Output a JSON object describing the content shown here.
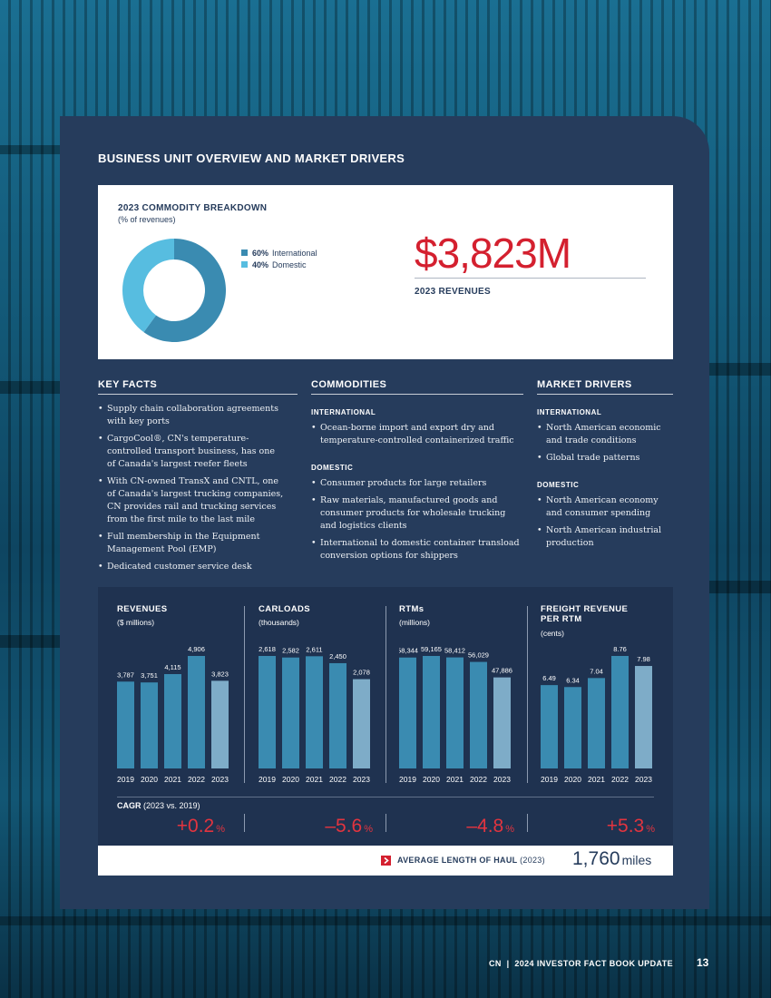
{
  "section_title": "BUSINESS UNIT OVERVIEW AND MARKET DRIVERS",
  "breakdown": {
    "title": "2023 COMMODITY BREAKDOWN",
    "subtitle": "(% of revenues)",
    "segments": [
      {
        "pct_label": "60%",
        "name": "International",
        "value": 60,
        "color": "#3a8bb1"
      },
      {
        "pct_label": "40%",
        "name": "Domestic",
        "value": 40,
        "color": "#57bde0"
      }
    ],
    "revenue_value": "$3,823M",
    "revenue_label": "2023 REVENUES"
  },
  "key_facts": {
    "heading": "KEY FACTS",
    "items": [
      "Supply chain collaboration agreements with key ports",
      "CargoCool®, CN's temperature-controlled transport business, has one of Canada's largest reefer fleets",
      "With CN-owned TransX and CNTL, one of Canada's largest trucking companies, CN provides rail and trucking services from the first mile to the last mile",
      "Full membership in the Equipment Management Pool (EMP)",
      "Dedicated customer service desk"
    ]
  },
  "commodities": {
    "heading": "COMMODITIES",
    "international_label": "INTERNATIONAL",
    "international": [
      "Ocean-borne import and export dry and temperature-controlled containerized traffic"
    ],
    "domestic_label": "DOMESTIC",
    "domestic": [
      "Consumer products for large retailers",
      "Raw materials, manufactured goods and consumer products for wholesale trucking and logistics clients",
      "International to domestic container transload conversion options for shippers"
    ]
  },
  "market_drivers": {
    "heading": "MARKET DRIVERS",
    "international_label": "INTERNATIONAL",
    "international": [
      "North American economic and trade conditions",
      "Global trade patterns"
    ],
    "domestic_label": "DOMESTIC",
    "domestic": [
      "North American economy and consumer spending",
      "North American industrial production"
    ]
  },
  "chart_data": [
    {
      "type": "bar",
      "title": "REVENUES",
      "ylabel": "($ millions)",
      "categories": [
        "2019",
        "2020",
        "2021",
        "2022",
        "2023"
      ],
      "values": [
        3787,
        3751,
        4115,
        4906,
        3823
      ],
      "labels": [
        "3,787",
        "3,751",
        "4,115",
        "4,906",
        "3,823"
      ],
      "ylim": [
        0,
        4906
      ]
    },
    {
      "type": "bar",
      "title": "CARLOADS",
      "ylabel": "(thousands)",
      "categories": [
        "2019",
        "2020",
        "2021",
        "2022",
        "2023"
      ],
      "values": [
        2618,
        2582,
        2611,
        2450,
        2078
      ],
      "labels": [
        "2,618",
        "2,582",
        "2,611",
        "2,450",
        "2,078"
      ],
      "ylim": [
        0,
        2618
      ]
    },
    {
      "type": "bar",
      "title": "RTMs",
      "ylabel": "(millions)",
      "categories": [
        "2019",
        "2020",
        "2021",
        "2022",
        "2023"
      ],
      "values": [
        58344,
        59165,
        58412,
        56029,
        47886
      ],
      "labels": [
        "58,344",
        "59,165",
        "58,412",
        "56,029",
        "47,886"
      ],
      "ylim": [
        0,
        59165
      ]
    },
    {
      "type": "bar",
      "title": "FREIGHT REVENUE PER RTM",
      "ylabel": "(cents)",
      "categories": [
        "2019",
        "2020",
        "2021",
        "2022",
        "2023"
      ],
      "values": [
        6.49,
        6.34,
        7.04,
        8.76,
        7.98
      ],
      "labels": [
        "6.49",
        "6.34",
        "7.04",
        "8.76",
        "7.98"
      ],
      "ylim": [
        0,
        8.76
      ]
    }
  ],
  "cagr": {
    "label": "CAGR",
    "period": "(2023 vs. 2019)",
    "values": [
      "+0.2",
      "–5.6",
      "–4.8",
      "+5.3"
    ],
    "unit": "%"
  },
  "haul": {
    "label": "AVERAGE LENGTH OF HAUL",
    "year": "(2023)",
    "value": "1,760",
    "unit": "miles"
  },
  "footer": {
    "text": "CN  |  2024 INVESTOR FACT BOOK UPDATE",
    "page": "13"
  },
  "colors": {
    "panel": "#263c5c",
    "accent_red": "#d4202f",
    "bar_main": "#3a8bb1",
    "bar_last": "#7eacc8"
  }
}
